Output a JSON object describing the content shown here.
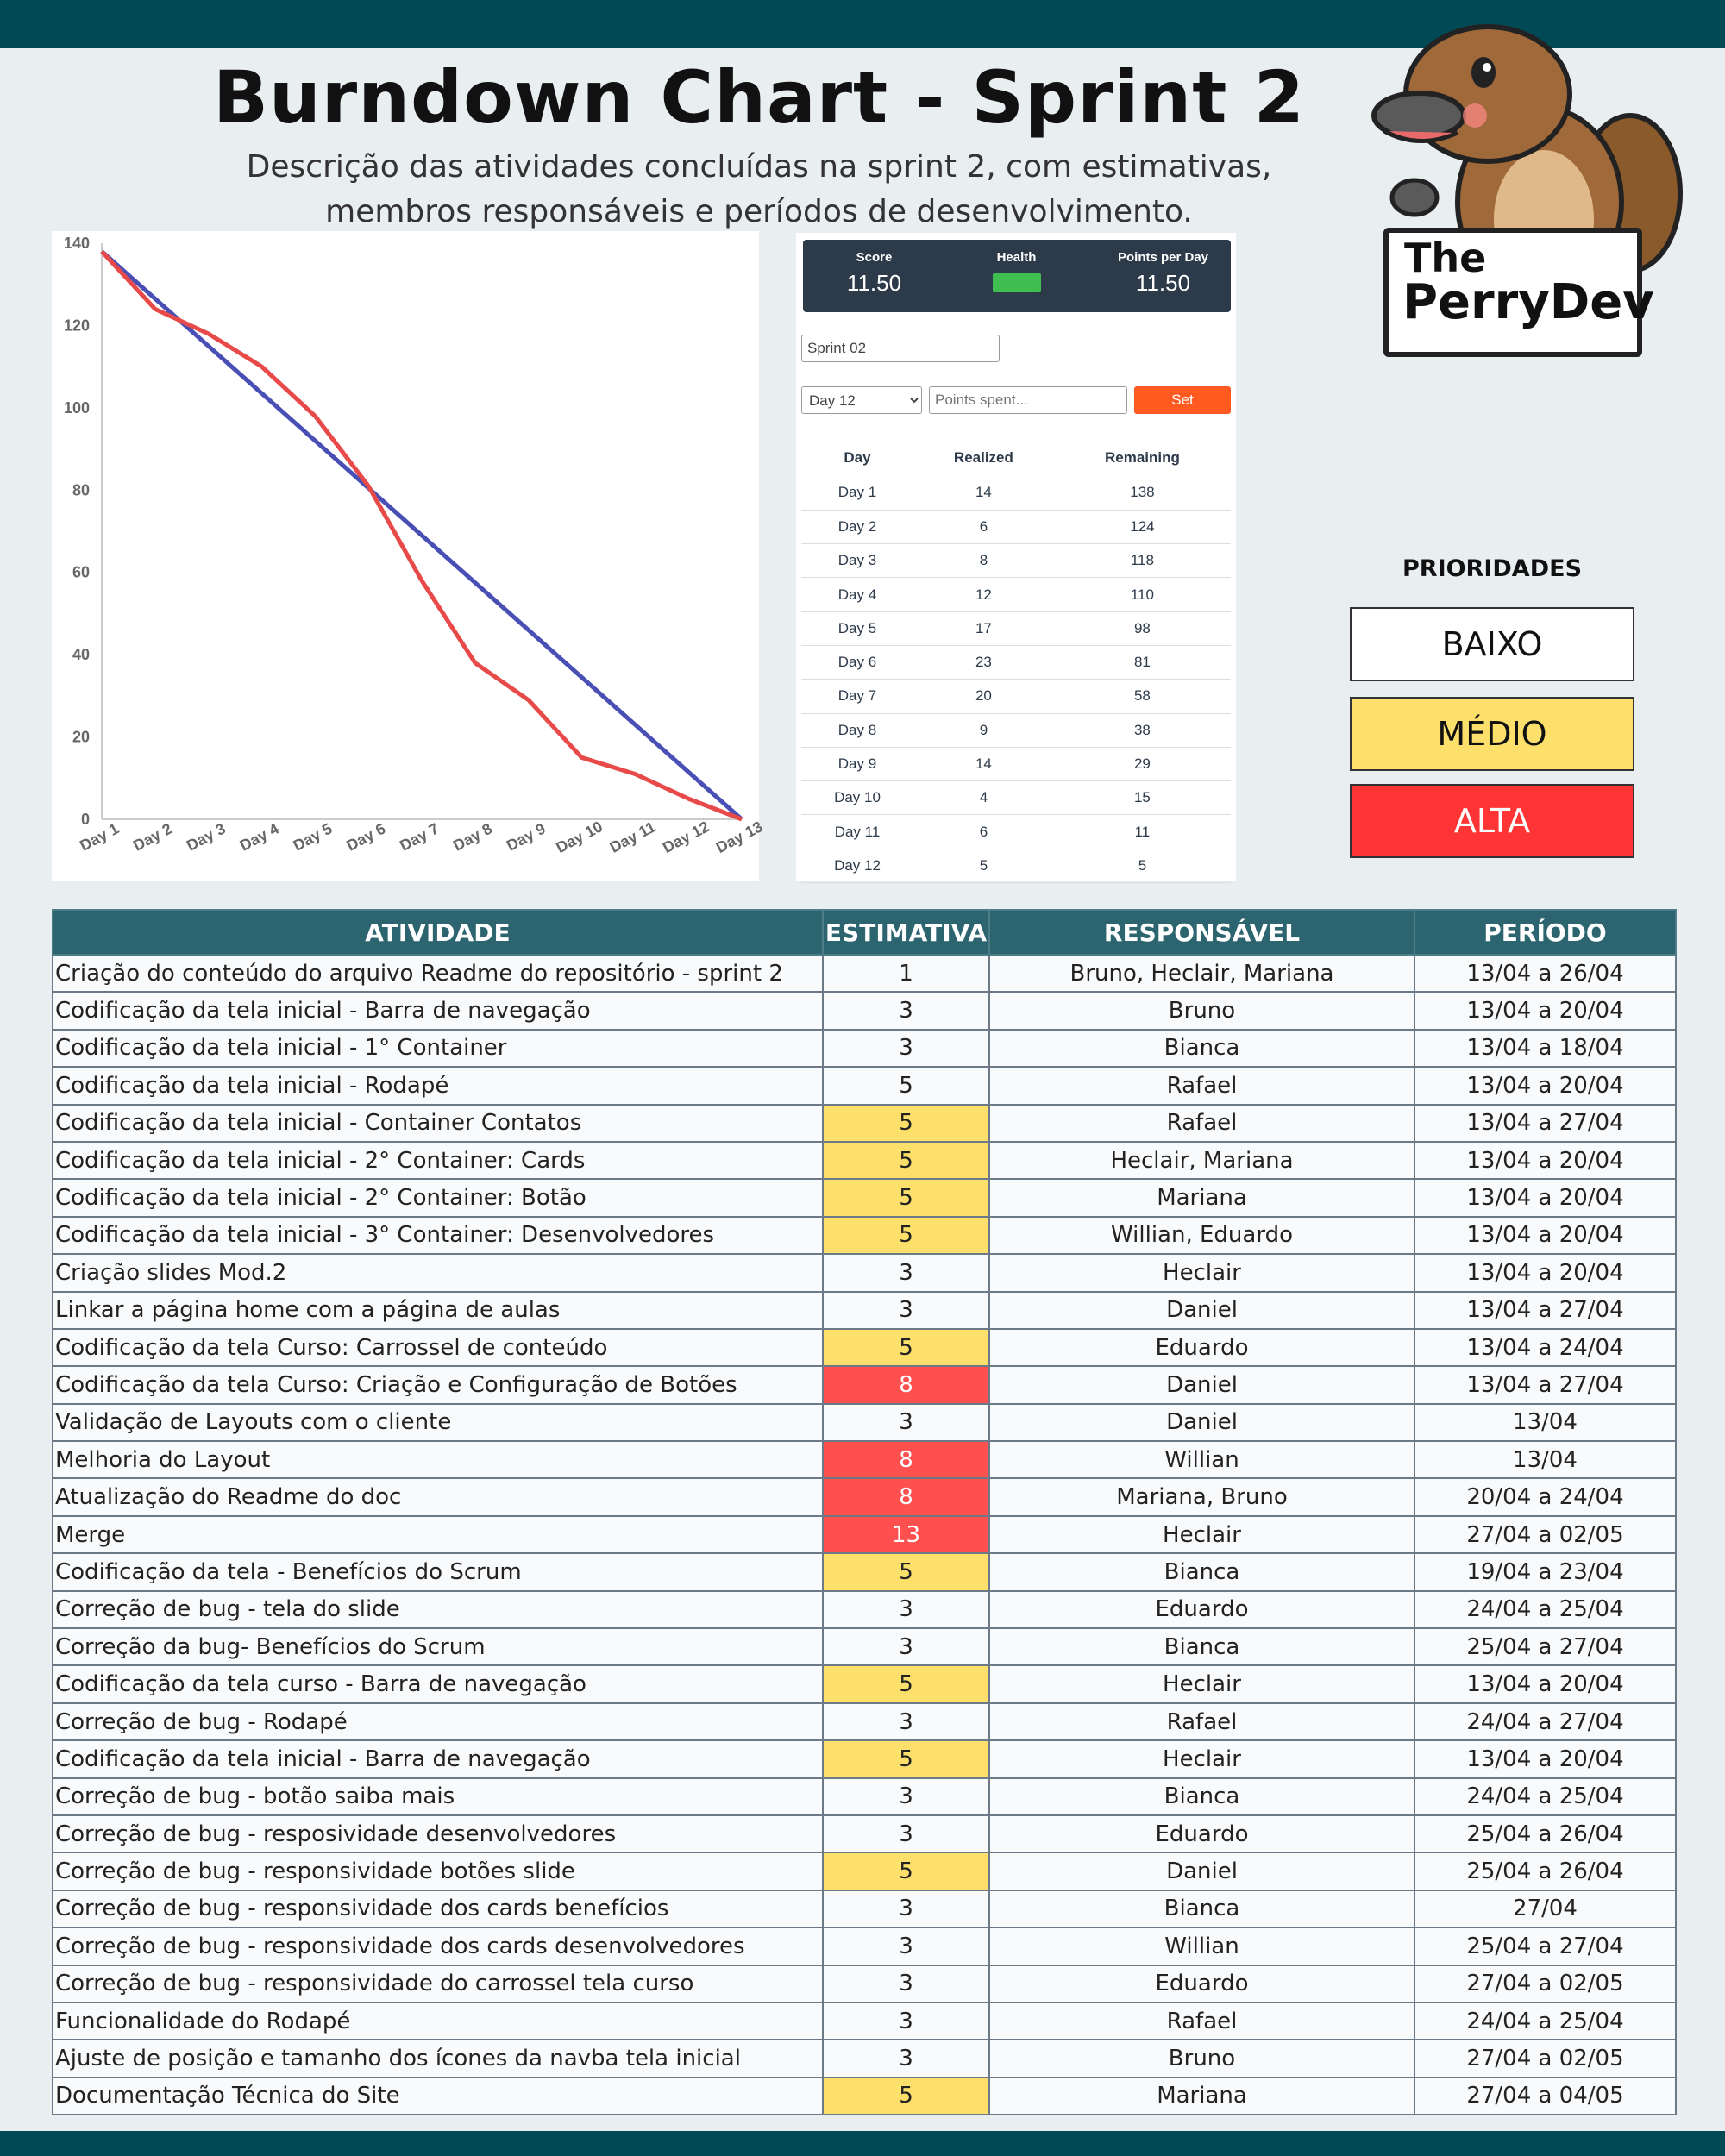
{
  "header": {
    "title": "Burndown Chart - Sprint 2",
    "subtitle_line1": "Descrição das atividades concluídas na sprint 2, com estimativas,",
    "subtitle_line2": "membros responsáveis e períodos de desenvolvimento."
  },
  "logo": {
    "line1": "The",
    "line2": "PerryDev"
  },
  "chart_data": {
    "type": "line",
    "categories": [
      "Day 1",
      "Day 2",
      "Day 3",
      "Day 4",
      "Day 5",
      "Day 6",
      "Day 7",
      "Day 8",
      "Day 9",
      "Day 10",
      "Day 11",
      "Day 12",
      "Day 13"
    ],
    "series": [
      {
        "color": "#4a4fb5",
        "values": [
          138,
          126.5,
          115,
          103.5,
          92,
          80.5,
          69,
          57.5,
          46,
          34.5,
          23,
          11.5,
          0
        ]
      },
      {
        "color": "#e84a4a",
        "values": [
          138,
          124,
          118,
          110,
          98,
          81,
          58,
          38,
          29,
          15,
          11,
          5,
          0
        ]
      }
    ],
    "ylim": [
      0,
      140
    ],
    "yticks": [
      0,
      20,
      40,
      60,
      80,
      100,
      120,
      140
    ],
    "grid": false
  },
  "app": {
    "stats": {
      "score_label": "Score",
      "score_value": "11.50",
      "health_label": "Health",
      "health_color": "#3fbf4f",
      "ppd_label": "Points per Day",
      "ppd_value": "11.50"
    },
    "sprint_value": "Sprint 02",
    "day_selected": "Day 12",
    "points_placeholder": "Points spent...",
    "set_label": "Set",
    "columns": [
      "Day",
      "Realized",
      "Remaining"
    ],
    "rows": [
      [
        "Day 1",
        "14",
        "138"
      ],
      [
        "Day 2",
        "6",
        "124"
      ],
      [
        "Day 3",
        "8",
        "118"
      ],
      [
        "Day 4",
        "12",
        "110"
      ],
      [
        "Day 5",
        "17",
        "98"
      ],
      [
        "Day 6",
        "23",
        "81"
      ],
      [
        "Day 7",
        "20",
        "58"
      ],
      [
        "Day 8",
        "9",
        "38"
      ],
      [
        "Day 9",
        "14",
        "29"
      ],
      [
        "Day 10",
        "4",
        "15"
      ],
      [
        "Day 11",
        "6",
        "11"
      ],
      [
        "Day 12",
        "5",
        "5"
      ]
    ]
  },
  "priorities": {
    "title": "PRIORIDADES",
    "low": "BAIXO",
    "medium": "MÉDIO",
    "high": "ALTA",
    "colors": {
      "low": "#ffffff",
      "medium": "#fde06b",
      "high": "#ff3535"
    }
  },
  "activities": {
    "columns": [
      "ATIVIDADE",
      "ESTIMATIVA",
      "RESPONSÁVEL",
      "PERÍODO"
    ],
    "rows": [
      [
        "Criação do conteúdo do arquivo Readme do repositório - sprint 2",
        "1",
        "Bruno, Heclair, Mariana",
        "13/04 a 26/04",
        "baixo"
      ],
      [
        "Codificação da tela inicial - Barra de navegação",
        "3",
        "Bruno",
        "13/04 a 20/04",
        "baixo"
      ],
      [
        "Codificação da tela inicial - 1° Container",
        "3",
        "Bianca",
        "13/04 a 18/04",
        "baixo"
      ],
      [
        "Codificação da tela inicial - Rodapé",
        "5",
        "Rafael",
        "13/04 a 20/04",
        "baixo"
      ],
      [
        "Codificação da tela inicial - Container Contatos",
        "5",
        "Rafael",
        "13/04 a 27/04",
        "medio"
      ],
      [
        "Codificação da tela inicial - 2° Container: Cards",
        "5",
        "Heclair, Mariana",
        "13/04 a 20/04",
        "medio"
      ],
      [
        "Codificação da tela inicial - 2° Container: Botão",
        "5",
        "Mariana",
        "13/04 a 20/04",
        "medio"
      ],
      [
        "Codificação da tela inicial - 3° Container: Desenvolvedores",
        "5",
        "Willian, Eduardo",
        "13/04 a 20/04",
        "medio"
      ],
      [
        "Criação slides Mod.2",
        "3",
        "Heclair",
        "13/04 a 20/04",
        "baixo"
      ],
      [
        "Linkar a página home com a página de aulas",
        "3",
        "Daniel",
        "13/04 a 27/04",
        "baixo"
      ],
      [
        "Codificação da tela Curso: Carrossel de conteúdo",
        "5",
        "Eduardo",
        "13/04 a 24/04",
        "medio"
      ],
      [
        "Codificação da tela Curso: Criação e Configuração de Botões",
        "8",
        "Daniel",
        "13/04 a 27/04",
        "alta"
      ],
      [
        "Validação de Layouts com o cliente",
        "3",
        "Daniel",
        "13/04",
        "baixo"
      ],
      [
        "Melhoria do Layout",
        "8",
        "Willian",
        "13/04",
        "alta"
      ],
      [
        "Atualização do Readme do doc",
        "8",
        "Mariana, Bruno",
        "20/04 a 24/04",
        "alta"
      ],
      [
        "Merge",
        "13",
        "Heclair",
        "27/04 a 02/05",
        "alta"
      ],
      [
        "Codificação da tela - Benefícios do Scrum",
        "5",
        "Bianca",
        "19/04 a 23/04",
        "medio"
      ],
      [
        "Correção de bug - tela do slide",
        "3",
        "Eduardo",
        "24/04 a 25/04",
        "baixo"
      ],
      [
        "Correção da bug- Benefícios do Scrum",
        "3",
        "Bianca",
        "25/04 a 27/04",
        "baixo"
      ],
      [
        "Codificação da tela curso - Barra de navegação",
        "5",
        "Heclair",
        "13/04 a 20/04",
        "medio"
      ],
      [
        "Correção de bug - Rodapé",
        "3",
        "Rafael",
        "24/04 a 27/04",
        "baixo"
      ],
      [
        "Codificação da tela inicial - Barra de navegação",
        "5",
        "Heclair",
        "13/04 a 20/04",
        "medio"
      ],
      [
        "Correção de bug - botão saiba mais",
        "3",
        "Bianca",
        "24/04 a 25/04",
        "baixo"
      ],
      [
        "Correção de bug - resposividade desenvolvedores",
        "3",
        "Eduardo",
        "25/04 a 26/04",
        "baixo"
      ],
      [
        "Correção de bug - responsividade botões slide",
        "5",
        "Daniel",
        "25/04 a 26/04",
        "medio"
      ],
      [
        "Correção de bug - responsividade dos cards benefícios",
        "3",
        "Bianca",
        "27/04",
        "baixo"
      ],
      [
        "Correção de bug - responsividade dos cards desenvolvedores",
        "3",
        "Willian",
        "25/04 a 27/04",
        "baixo"
      ],
      [
        "Correção de bug - responsividade do carrossel tela curso",
        "3",
        "Eduardo",
        "27/04 a 02/05",
        "baixo"
      ],
      [
        "Funcionalidade do Rodapé",
        "3",
        "Rafael",
        "24/04 a 25/04",
        "baixo"
      ],
      [
        "Ajuste de posição e tamanho dos ícones da navba tela inicial",
        "3",
        "Bruno",
        "27/04 a 02/05",
        "baixo"
      ],
      [
        "Documentação Técnica do Site",
        "5",
        "Mariana",
        "27/04 a 04/05",
        "medio"
      ]
    ]
  }
}
